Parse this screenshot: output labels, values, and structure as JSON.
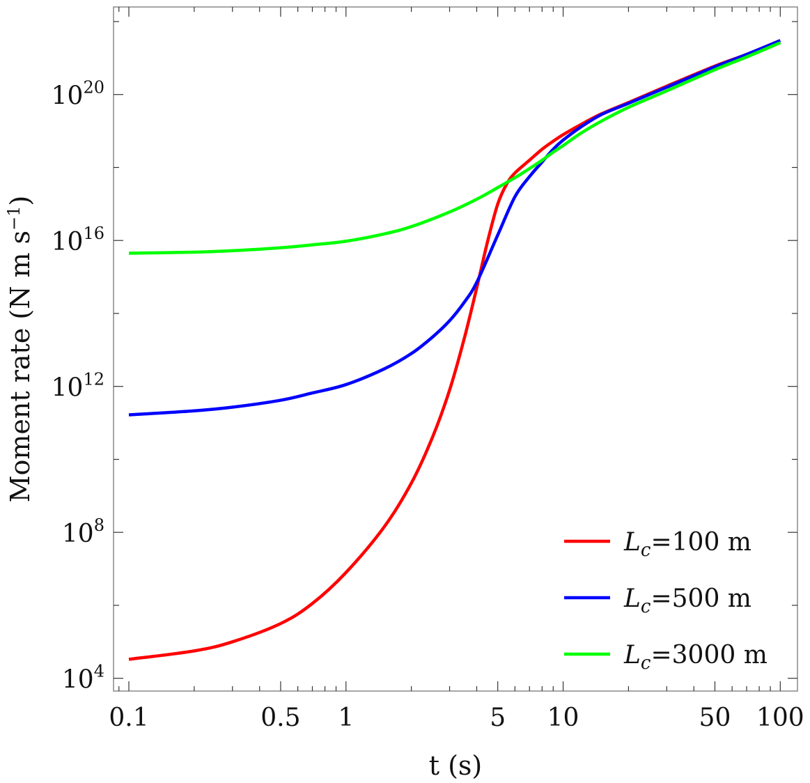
{
  "chart_data": {
    "type": "line",
    "xlabel": "t (s)",
    "ylabel": "Moment rate (N m s",
    "ylabel_sup": "−1",
    "ylabel_close": ")",
    "x_scale": "log",
    "y_scale": "log",
    "xlim": [
      0.085,
      120
    ],
    "ylim_exponent": [
      3.65,
      22.4
    ],
    "x_ticks": [
      {
        "value": 0.1,
        "label": "0.1"
      },
      {
        "value": 0.5,
        "label": "0.5"
      },
      {
        "value": 1,
        "label": "1"
      },
      {
        "value": 5,
        "label": "5"
      },
      {
        "value": 10,
        "label": "10"
      },
      {
        "value": 50,
        "label": "50"
      },
      {
        "value": 100,
        "label": "100"
      }
    ],
    "y_ticks": [
      {
        "exponent": 4,
        "base": "10",
        "sup": "4"
      },
      {
        "exponent": 8,
        "base": "10",
        "sup": "8"
      },
      {
        "exponent": 12,
        "base": "10",
        "sup": "12"
      },
      {
        "exponent": 16,
        "base": "10",
        "sup": "16"
      },
      {
        "exponent": 20,
        "base": "10",
        "sup": "20"
      }
    ],
    "grid": false,
    "legend_position": "bottom-right",
    "series": [
      {
        "name": "=100 m",
        "legend_symbol": "L",
        "legend_sub": "c",
        "color": "#ff0000",
        "x": [
          0.1,
          0.2,
          0.3,
          0.5,
          0.7,
          1,
          1.5,
          2,
          2.5,
          3,
          3.5,
          4,
          4.5,
          5,
          5.5,
          6,
          7,
          8,
          9,
          10,
          12,
          15,
          20,
          30,
          50,
          70,
          100
        ],
        "y_exponent": [
          4.52,
          4.75,
          5.0,
          5.5,
          6.05,
          6.9,
          8.15,
          9.35,
          10.6,
          11.9,
          13.3,
          14.7,
          16.0,
          17.0,
          17.55,
          17.85,
          18.2,
          18.5,
          18.72,
          18.9,
          19.17,
          19.47,
          19.78,
          20.23,
          20.78,
          21.1,
          21.48
        ]
      },
      {
        "name": "=500 m",
        "legend_symbol": "L",
        "legend_sub": "c",
        "color": "#0000ff",
        "x": [
          0.1,
          0.2,
          0.3,
          0.5,
          0.7,
          1,
          1.5,
          2,
          2.5,
          3,
          3.5,
          4,
          5,
          6,
          7,
          8,
          9,
          10,
          12,
          15,
          20,
          30,
          50,
          70,
          100
        ],
        "y_exponent": [
          11.22,
          11.33,
          11.43,
          11.62,
          11.82,
          12.05,
          12.48,
          12.9,
          13.35,
          13.8,
          14.3,
          14.85,
          16.15,
          17.2,
          17.75,
          18.15,
          18.5,
          18.75,
          19.1,
          19.45,
          19.76,
          20.2,
          20.76,
          21.1,
          21.48
        ]
      },
      {
        "name": "=3000 m",
        "legend_symbol": "L",
        "legend_sub": "c",
        "color": "#00ff00",
        "x": [
          0.1,
          0.2,
          0.3,
          0.5,
          0.7,
          1,
          1.5,
          2,
          3,
          4,
          5,
          6,
          7,
          8,
          9,
          10,
          12,
          15,
          20,
          30,
          50,
          70,
          100
        ],
        "y_exponent": [
          15.65,
          15.68,
          15.72,
          15.8,
          15.88,
          15.98,
          16.18,
          16.38,
          16.78,
          17.13,
          17.45,
          17.72,
          17.97,
          18.2,
          18.42,
          18.6,
          18.93,
          19.27,
          19.65,
          20.1,
          20.68,
          21.03,
          21.42
        ]
      }
    ]
  }
}
